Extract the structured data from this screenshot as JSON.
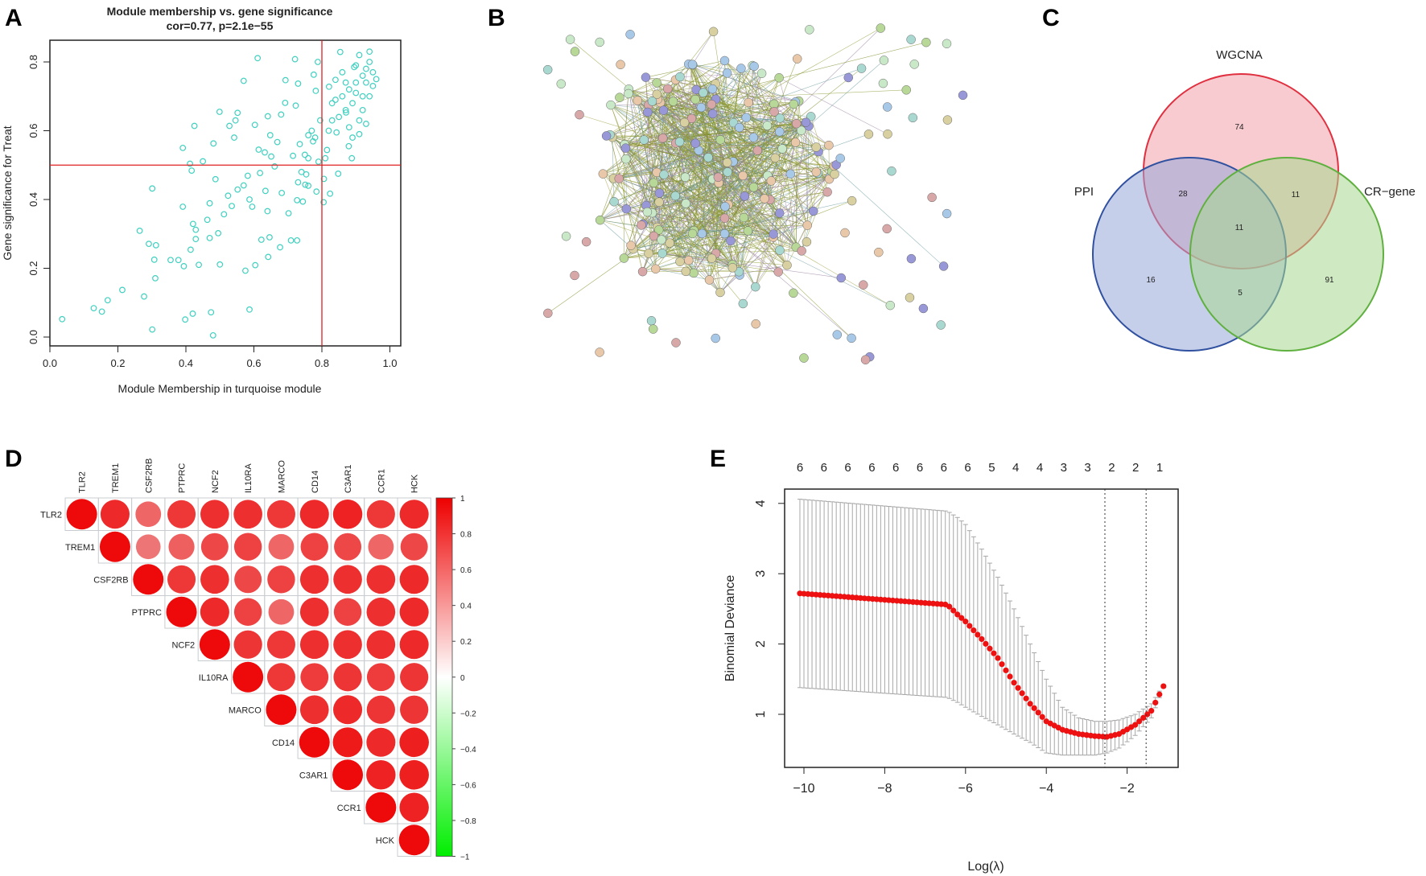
{
  "panels": {
    "a": "A",
    "b": "B",
    "c": "C",
    "d": "D",
    "e": "E"
  },
  "chart_data": [
    {
      "panel": "A",
      "type": "scatter",
      "title": "Module membership vs. gene significance",
      "subtitle": "cor=0.77, p=2.1e−55",
      "xlabel": "Module Membership in turquoise module",
      "ylabel": "Gene significance for  Treat",
      "xlim": [
        0,
        1.03
      ],
      "ylim": [
        -0.03,
        0.87
      ],
      "xticks": [
        "0.0",
        "0.2",
        "0.4",
        "0.6",
        "0.8",
        "1.0"
      ],
      "yticks": [
        "0.0",
        "0.2",
        "0.4",
        "0.6",
        "0.8"
      ],
      "hline": 0.5,
      "vline": 0.8,
      "point_color": "#40d0c0",
      "line_color": "#e02020",
      "points": [
        [
          0.036,
          0.052
        ],
        [
          0.129,
          0.084
        ],
        [
          0.153,
          0.074
        ],
        [
          0.17,
          0.107
        ],
        [
          0.213,
          0.137
        ],
        [
          0.264,
          0.309
        ],
        [
          0.277,
          0.118
        ],
        [
          0.291,
          0.271
        ],
        [
          0.312,
          0.267
        ],
        [
          0.307,
          0.225
        ],
        [
          0.31,
          0.171
        ],
        [
          0.301,
          0.432
        ],
        [
          0.301,
          0.022
        ],
        [
          0.355,
          0.224
        ],
        [
          0.378,
          0.224
        ],
        [
          0.394,
          0.206
        ],
        [
          0.391,
          0.379
        ],
        [
          0.391,
          0.55
        ],
        [
          0.398,
          0.051
        ],
        [
          0.42,
          0.068
        ],
        [
          0.412,
          0.504
        ],
        [
          0.417,
          0.484
        ],
        [
          0.425,
          0.614
        ],
        [
          0.414,
          0.254
        ],
        [
          0.421,
          0.329
        ],
        [
          0.429,
          0.312
        ],
        [
          0.429,
          0.285
        ],
        [
          0.438,
          0.21
        ],
        [
          0.45,
          0.511
        ],
        [
          0.463,
          0.341
        ],
        [
          0.47,
          0.389
        ],
        [
          0.47,
          0.288
        ],
        [
          0.474,
          0.072
        ],
        [
          0.48,
          0.005
        ],
        [
          0.481,
          0.563
        ],
        [
          0.487,
          0.459
        ],
        [
          0.495,
          0.302
        ],
        [
          0.499,
          0.655
        ],
        [
          0.5,
          0.211
        ],
        [
          0.512,
          0.357
        ],
        [
          0.524,
          0.411
        ],
        [
          0.528,
          0.614
        ],
        [
          0.535,
          0.381
        ],
        [
          0.542,
          0.58
        ],
        [
          0.546,
          0.63
        ],
        [
          0.552,
          0.652
        ],
        [
          0.552,
          0.429
        ],
        [
          0.57,
          0.745
        ],
        [
          0.57,
          0.441
        ],
        [
          0.575,
          0.193
        ],
        [
          0.582,
          0.469
        ],
        [
          0.587,
          0.4
        ],
        [
          0.587,
          0.08
        ],
        [
          0.595,
          0.379
        ],
        [
          0.603,
          0.617
        ],
        [
          0.604,
          0.209
        ],
        [
          0.611,
          0.811
        ],
        [
          0.614,
          0.545
        ],
        [
          0.618,
          0.477
        ],
        [
          0.622,
          0.283
        ],
        [
          0.632,
          0.537
        ],
        [
          0.634,
          0.425
        ],
        [
          0.64,
          0.366
        ],
        [
          0.641,
          0.642
        ],
        [
          0.642,
          0.233
        ],
        [
          0.646,
          0.29
        ],
        [
          0.648,
          0.587
        ],
        [
          0.651,
          0.525
        ],
        [
          0.661,
          0.496
        ],
        [
          0.669,
          0.567
        ],
        [
          0.677,
          0.261
        ],
        [
          0.68,
          0.647
        ],
        [
          0.682,
          0.419
        ],
        [
          0.692,
          0.681
        ],
        [
          0.693,
          0.747
        ],
        [
          0.702,
          0.36
        ],
        [
          0.709,
          0.281
        ],
        [
          0.715,
          0.527
        ],
        [
          0.721,
          0.808
        ],
        [
          0.723,
          0.673
        ],
        [
          0.727,
          0.281
        ],
        [
          0.73,
          0.737
        ],
        [
          0.735,
          0.561
        ],
        [
          0.727,
          0.398
        ],
        [
          0.744,
          0.394
        ],
        [
          0.751,
          0.443
        ],
        [
          0.754,
          0.473
        ],
        [
          0.76,
          0.587
        ],
        [
          0.774,
          0.569
        ],
        [
          0.776,
          0.763
        ],
        [
          0.784,
          0.423
        ],
        [
          0.788,
          0.8
        ],
        [
          0.782,
          0.716
        ],
        [
          0.795,
          0.63
        ],
        [
          0.805,
          0.392
        ],
        [
          0.806,
          0.46
        ],
        [
          0.815,
          0.544
        ],
        [
          0.824,
          0.417
        ],
        [
          0.821,
          0.728
        ],
        [
          0.83,
          0.63
        ],
        [
          0.84,
          0.748
        ],
        [
          0.854,
          0.829
        ],
        [
          0.843,
          0.595
        ],
        [
          0.848,
          0.475
        ],
        [
          0.871,
          0.653
        ],
        [
          0.879,
          0.555
        ],
        [
          0.888,
          0.52
        ],
        [
          0.895,
          0.785
        ],
        [
          0.86,
          0.7
        ],
        [
          0.88,
          0.72
        ],
        [
          0.9,
          0.74
        ],
        [
          0.92,
          0.76
        ],
        [
          0.93,
          0.78
        ],
        [
          0.94,
          0.8
        ],
        [
          0.91,
          0.82
        ],
        [
          0.87,
          0.66
        ],
        [
          0.89,
          0.68
        ],
        [
          0.92,
          0.7
        ],
        [
          0.95,
          0.73
        ],
        [
          0.93,
          0.74
        ],
        [
          0.9,
          0.79
        ],
        [
          0.88,
          0.61
        ],
        [
          0.91,
          0.63
        ],
        [
          0.84,
          0.69
        ],
        [
          0.86,
          0.77
        ],
        [
          0.95,
          0.77
        ],
        [
          0.94,
          0.7
        ],
        [
          0.92,
          0.66
        ],
        [
          0.89,
          0.58
        ],
        [
          0.85,
          0.64
        ],
        [
          0.83,
          0.68
        ],
        [
          0.96,
          0.75
        ],
        [
          0.9,
          0.71
        ],
        [
          0.87,
          0.74
        ],
        [
          0.82,
          0.6
        ],
        [
          0.94,
          0.83
        ],
        [
          0.93,
          0.62
        ],
        [
          0.91,
          0.59
        ],
        [
          0.78,
          0.58
        ],
        [
          0.76,
          0.52
        ],
        [
          0.75,
          0.53
        ],
        [
          0.79,
          0.51
        ],
        [
          0.81,
          0.52
        ],
        [
          0.77,
          0.6
        ],
        [
          0.74,
          0.48
        ],
        [
          0.73,
          0.45
        ],
        [
          0.76,
          0.44
        ]
      ]
    },
    {
      "panel": "C",
      "type": "venn",
      "sets": [
        {
          "name": "WGCNA",
          "color": "#e03040",
          "fill": "#f0a0a8"
        },
        {
          "name": "PPI",
          "color": "#3050a0",
          "fill": "#98a8d8"
        },
        {
          "name": "CR−gene",
          "color": "#60b040",
          "fill": "#a8d890"
        }
      ],
      "regions": {
        "WGCNA_only": "74",
        "PPI_only": "16",
        "CR_only": "91",
        "WGCNA_PPI": "28",
        "WGCNA_CR": "11",
        "PPI_CR": "5",
        "all": "11"
      }
    },
    {
      "panel": "D",
      "type": "heatmap",
      "genes": [
        "TLR2",
        "TREM1",
        "CSF2RB",
        "PTPRC",
        "NCF2",
        "IL10RA",
        "MARCO",
        "CD14",
        "C3AR1",
        "CCR1",
        "HCK"
      ],
      "upper_triangle": [
        [
          1,
          0.9,
          0.7,
          0.85,
          0.88,
          0.88,
          0.85,
          0.9,
          0.92,
          0.85,
          0.9
        ],
        [
          1,
          0.65,
          0.72,
          0.8,
          0.82,
          0.7,
          0.82,
          0.8,
          0.7,
          0.8
        ],
        [
          1,
          0.85,
          0.88,
          0.8,
          0.82,
          0.88,
          0.88,
          0.88,
          0.9
        ],
        [
          1,
          0.9,
          0.82,
          0.7,
          0.88,
          0.82,
          0.88,
          0.9
        ],
        [
          1,
          0.86,
          0.85,
          0.88,
          0.88,
          0.88,
          0.9
        ],
        [
          1,
          0.85,
          0.84,
          0.86,
          0.84,
          0.86
        ],
        [
          1,
          0.88,
          0.9,
          0.86,
          0.86
        ],
        [
          1,
          0.95,
          0.9,
          0.93
        ],
        [
          1,
          0.92,
          0.93
        ],
        [
          1,
          0.92
        ],
        [
          1
        ]
      ],
      "colorbar_ticks": [
        "1",
        "0.8",
        "0.6",
        "0.4",
        "0.2",
        "0",
        "−0.2",
        "−0.4",
        "−0.6",
        "−0.8",
        "−1"
      ],
      "colorbar_range": [
        -1,
        1
      ]
    },
    {
      "panel": "E",
      "type": "line",
      "xlabel": "Log(λ)",
      "ylabel": "Binomial Deviance",
      "xlim": [
        -10.5,
        -0.75
      ],
      "ylim": [
        0.25,
        4.2
      ],
      "xticks": [
        "−10",
        "−8",
        "−6",
        "−4",
        "−2"
      ],
      "xtick_values": [
        -10,
        -8,
        -6,
        -4,
        -2
      ],
      "yticks": [
        "1",
        "2",
        "3",
        "4"
      ],
      "ytick_values": [
        1,
        2,
        3,
        4
      ],
      "top_labels": [
        "6",
        "6",
        "6",
        "6",
        "6",
        "6",
        "6",
        "6",
        "5",
        "4",
        "4",
        "3",
        "3",
        "2",
        "2",
        "1"
      ],
      "vlines": [
        -2.55,
        -1.53
      ],
      "curve": {
        "x": [
          -10.1,
          -6.45,
          -6.2,
          -6.0,
          -5.6,
          -5.2,
          -4.8,
          -4.4,
          -4.0,
          -3.6,
          -3.2,
          -2.8,
          -2.5,
          -2.2,
          -1.8,
          -1.4,
          -1.1
        ],
        "mean": [
          2.72,
          2.56,
          2.42,
          2.32,
          2.07,
          1.8,
          1.45,
          1.15,
          0.9,
          0.78,
          0.72,
          0.69,
          0.68,
          0.72,
          0.85,
          1.05,
          1.4
        ],
        "upper": [
          4.06,
          3.89,
          3.8,
          3.7,
          3.35,
          2.95,
          2.5,
          2.0,
          1.5,
          1.1,
          0.95,
          0.9,
          0.9,
          0.92,
          1.0,
          1.15,
          1.42
        ],
        "lower": [
          1.38,
          1.24,
          1.17,
          1.1,
          0.97,
          0.85,
          0.72,
          0.6,
          0.45,
          0.42,
          0.42,
          0.42,
          0.45,
          0.52,
          0.7,
          0.95,
          1.38
        ]
      },
      "point_color": "#ee1111",
      "errorbar_color": "#a8a8a8"
    }
  ]
}
